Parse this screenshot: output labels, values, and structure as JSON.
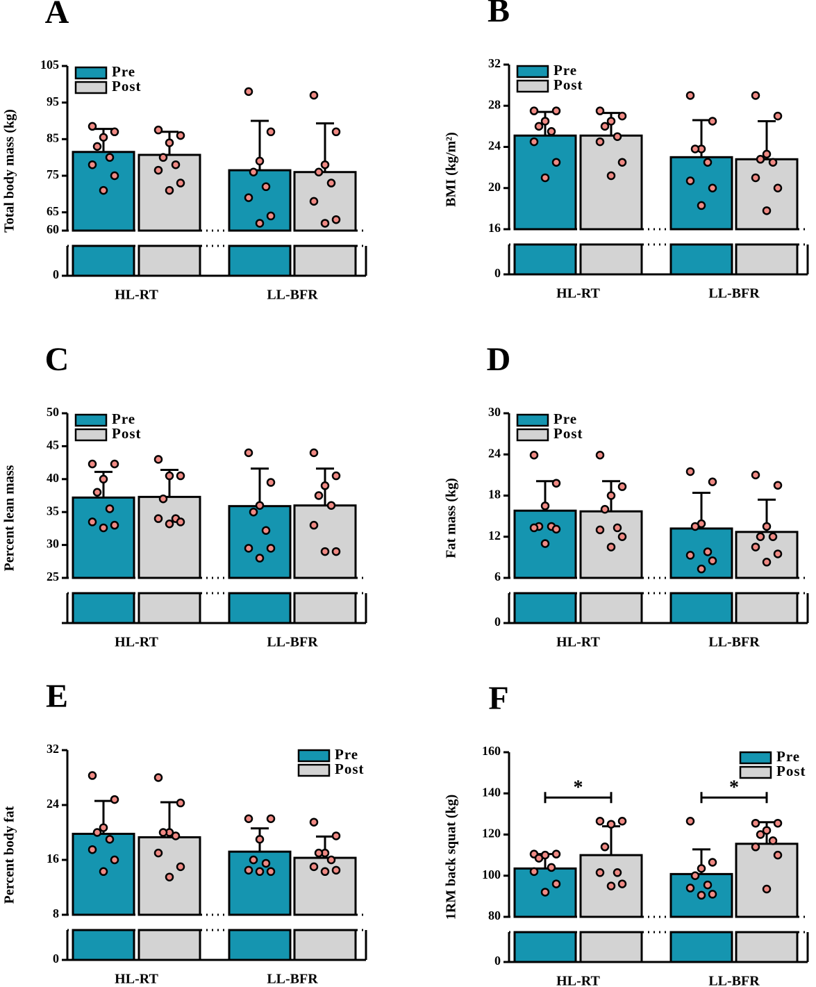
{
  "chart_data": [
    {
      "type": "bar",
      "label": "A",
      "y_label": "Total body mass (kg)",
      "categories": [
        "HL-RT",
        "LL-BFR"
      ],
      "series": [
        {
          "name": "Pre",
          "color": "#1595b0",
          "values": [
            81.5,
            76.5
          ],
          "errors": [
            6.3,
            13.5
          ],
          "points": [
            [
              88.5,
              87,
              85.5,
              83,
              80,
              78,
              75,
              71
            ],
            [
              98,
              87,
              79,
              76,
              72,
              69,
              64,
              62
            ]
          ]
        },
        {
          "name": "Post",
          "color": "#d3d3d3",
          "values": [
            80.7,
            76
          ],
          "errors": [
            6.3,
            13.3
          ],
          "points": [
            [
              87.5,
              86,
              84,
              80,
              78,
              76.5,
              73,
              71
            ],
            [
              97,
              87,
              78,
              76,
              73,
              68,
              63,
              62
            ]
          ]
        }
      ],
      "ylim": [
        60,
        105
      ],
      "yticks": [
        60,
        65,
        75,
        85,
        95,
        105
      ],
      "lower_yticks": [
        0
      ],
      "legend": "upper left",
      "point_color": "#f08a84"
    },
    {
      "type": "bar",
      "label": "B",
      "y_label": "BMI (kg/m²)",
      "categories": [
        "HL-RT",
        "LL-BFR"
      ],
      "series": [
        {
          "name": "Pre",
          "color": "#1595b0",
          "values": [
            25.1,
            23
          ],
          "errors": [
            2.3,
            3.6
          ],
          "points": [
            [
              27.5,
              27.5,
              26.5,
              26,
              25.5,
              24.5,
              22.5,
              21
            ],
            [
              29,
              26.5,
              23.8,
              23.8,
              22.5,
              20.7,
              20,
              18.3
            ]
          ]
        },
        {
          "name": "Post",
          "color": "#d3d3d3",
          "values": [
            25.1,
            22.8
          ],
          "errors": [
            2.2,
            3.7
          ],
          "points": [
            [
              27.5,
              27,
              26.5,
              26,
              25,
              24.5,
              22.5,
              21.2
            ],
            [
              29,
              27,
              23.3,
              22.8,
              22.5,
              21,
              20,
              17.8
            ]
          ]
        }
      ],
      "ylim": [
        16,
        32
      ],
      "yticks": [
        16,
        20,
        24,
        28,
        32
      ],
      "lower_yticks": [
        0
      ],
      "legend": "upper left",
      "point_color": "#f08a84"
    },
    {
      "type": "bar",
      "label": "C",
      "y_label": "Percent lean mass",
      "categories": [
        "HL-RT",
        "LL-BFR"
      ],
      "series": [
        {
          "name": "Pre",
          "color": "#1595b0",
          "values": [
            37.2,
            35.9
          ],
          "errors": [
            3.9,
            5.7
          ],
          "points": [
            [
              42.3,
              42.3,
              40,
              38,
              35.5,
              33.5,
              33,
              32.6
            ],
            [
              44,
              39.5,
              36,
              35,
              32.2,
              29.5,
              29.5,
              28
            ]
          ]
        },
        {
          "name": "Post",
          "color": "#d3d3d3",
          "values": [
            37.3,
            36
          ],
          "errors": [
            4.1,
            5.6
          ],
          "points": [
            [
              43,
              40.5,
              40.5,
              37,
              34,
              34,
              33.5,
              33.2
            ],
            [
              44,
              40.5,
              39,
              37.5,
              36,
              33,
              29,
              29
            ]
          ]
        }
      ],
      "ylim": [
        25,
        50
      ],
      "yticks": [
        25,
        30,
        35,
        40,
        45,
        50
      ],
      "lower_yticks": [],
      "legend": "upper left",
      "point_color": "#f08a84"
    },
    {
      "type": "bar",
      "label": "D",
      "y_label": "Fat mass (kg)",
      "categories": [
        "HL-RT",
        "LL-BFR"
      ],
      "series": [
        {
          "name": "Pre",
          "color": "#1595b0",
          "values": [
            15.8,
            13.2
          ],
          "errors": [
            4.3,
            5.2
          ],
          "points": [
            [
              23.9,
              19.8,
              16.5,
              13.5,
              13.5,
              13.3,
              13.1,
              11
            ],
            [
              21.5,
              20,
              13.9,
              13.5,
              9.8,
              9.3,
              8.5,
              7.3
            ]
          ]
        },
        {
          "name": "Post",
          "color": "#d3d3d3",
          "values": [
            15.7,
            12.7
          ],
          "errors": [
            4.4,
            4.7
          ],
          "points": [
            [
              23.9,
              19.3,
              18,
              16,
              13.3,
              13,
              12,
              10.5
            ],
            [
              21,
              19.5,
              13.5,
              12,
              12,
              10.5,
              9.5,
              8.3
            ]
          ]
        }
      ],
      "ylim": [
        6,
        30
      ],
      "yticks": [
        6,
        12,
        18,
        24,
        30
      ],
      "lower_yticks": [
        0
      ],
      "legend": "upper left",
      "point_color": "#f08a84"
    },
    {
      "type": "bar",
      "label": "E",
      "y_label": "Percent body fat",
      "categories": [
        "HL-RT",
        "LL-BFR"
      ],
      "series": [
        {
          "name": "Pre",
          "color": "#1595b0",
          "values": [
            19.8,
            17.2
          ],
          "errors": [
            4.8,
            3.4
          ],
          "points": [
            [
              28.3,
              24.8,
              20.7,
              20,
              19,
              17.5,
              16,
              14.3
            ],
            [
              22,
              22,
              19,
              16,
              15.5,
              14.5,
              14.3,
              14.3
            ]
          ]
        },
        {
          "name": "Post",
          "color": "#d3d3d3",
          "values": [
            19.3,
            16.3
          ],
          "errors": [
            5.1,
            3.1
          ],
          "points": [
            [
              28,
              24.3,
              20,
              20,
              19.5,
              17,
              15,
              13.5
            ],
            [
              21.5,
              19.5,
              17,
              17,
              16,
              15,
              14.5,
              14.3
            ]
          ]
        }
      ],
      "ylim": [
        8,
        32
      ],
      "yticks": [
        8,
        16,
        24,
        32
      ],
      "lower_yticks": [
        0
      ],
      "legend": "upper right",
      "point_color": "#f08a84"
    },
    {
      "type": "bar",
      "label": "F",
      "y_label": "1RM back squat (kg)",
      "categories": [
        "HL-RT",
        "LL-BFR"
      ],
      "series": [
        {
          "name": "Pre",
          "color": "#1595b0",
          "values": [
            103.5,
            100.8
          ],
          "errors": [
            7,
            12
          ],
          "points": [
            [
              110.5,
              110.5,
              110,
              108.5,
              104,
              102,
              96,
              92
            ],
            [
              126.5,
              106.5,
              103.5,
              100,
              95.5,
              94,
              91,
              90.5
            ]
          ]
        },
        {
          "name": "Post",
          "color": "#d3d3d3",
          "values": [
            110,
            115.5
          ],
          "errors": [
            14,
            10.5
          ],
          "points": [
            [
              126.5,
              126.5,
              125,
              114,
              101.5,
              101.5,
              96,
              95
            ],
            [
              125.5,
              125.5,
              122,
              120,
              117,
              114,
              110,
              93.5
            ]
          ]
        }
      ],
      "annotations": [
        "*",
        "*"
      ],
      "ylim": [
        80,
        160
      ],
      "yticks": [
        80,
        100,
        120,
        140,
        160
      ],
      "lower_yticks": [
        0
      ],
      "legend": "upper right",
      "point_color": "#f08a84"
    }
  ]
}
